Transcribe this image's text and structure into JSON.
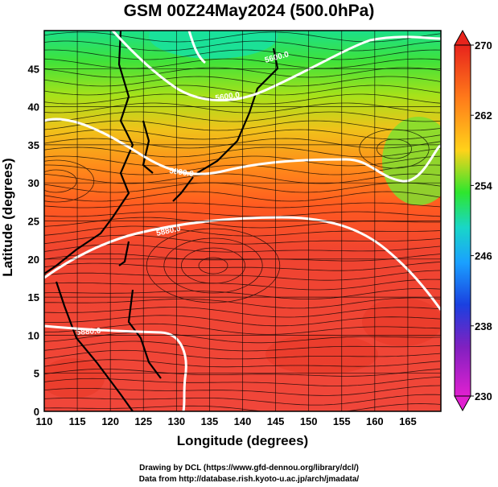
{
  "title": "GSM 00Z24May2024 (500.0hPa)",
  "xlabel": "Longitude (degrees)",
  "ylabel": "Latitude  (degrees)",
  "x_ticks": [
    "110",
    "115",
    "120",
    "125",
    "130",
    "135",
    "140",
    "145",
    "150",
    "155",
    "160",
    "165"
  ],
  "y_ticks": [
    "0",
    "5",
    "10",
    "15",
    "20",
    "25",
    "30",
    "35",
    "40",
    "45"
  ],
  "colorbar": {
    "ticks": [
      "270",
      "262",
      "254",
      "246",
      "238",
      "230"
    ],
    "colors": [
      "#e8241c",
      "#ff7a1a",
      "#ffd21a",
      "#2ee62e",
      "#19d6c8",
      "#1aa0ff",
      "#1a40e0",
      "#8020c0",
      "#e020d0"
    ]
  },
  "contours": [
    {
      "label": "5880.0"
    },
    {
      "label": "5880.0"
    },
    {
      "label": "5800.0"
    },
    {
      "label": "5600.0"
    },
    {
      "label": "5600.0"
    }
  ],
  "credits": {
    "line1": "Drawing by DCL (https://www.gfd-dennou.org/library/dcl/)",
    "line2": "Data from http://database.rish.kyoto-u.ac.jp/arch/jmadata/"
  },
  "chart_data": {
    "type": "heatmap",
    "title": "GSM 00Z24May2024 (500.0hPa)",
    "xlabel": "Longitude (degrees)",
    "ylabel": "Latitude  (degrees)",
    "xlim": [
      110,
      170
    ],
    "ylim": [
      0,
      50
    ],
    "colorbar_range": [
      230,
      270
    ],
    "grid": true
  }
}
